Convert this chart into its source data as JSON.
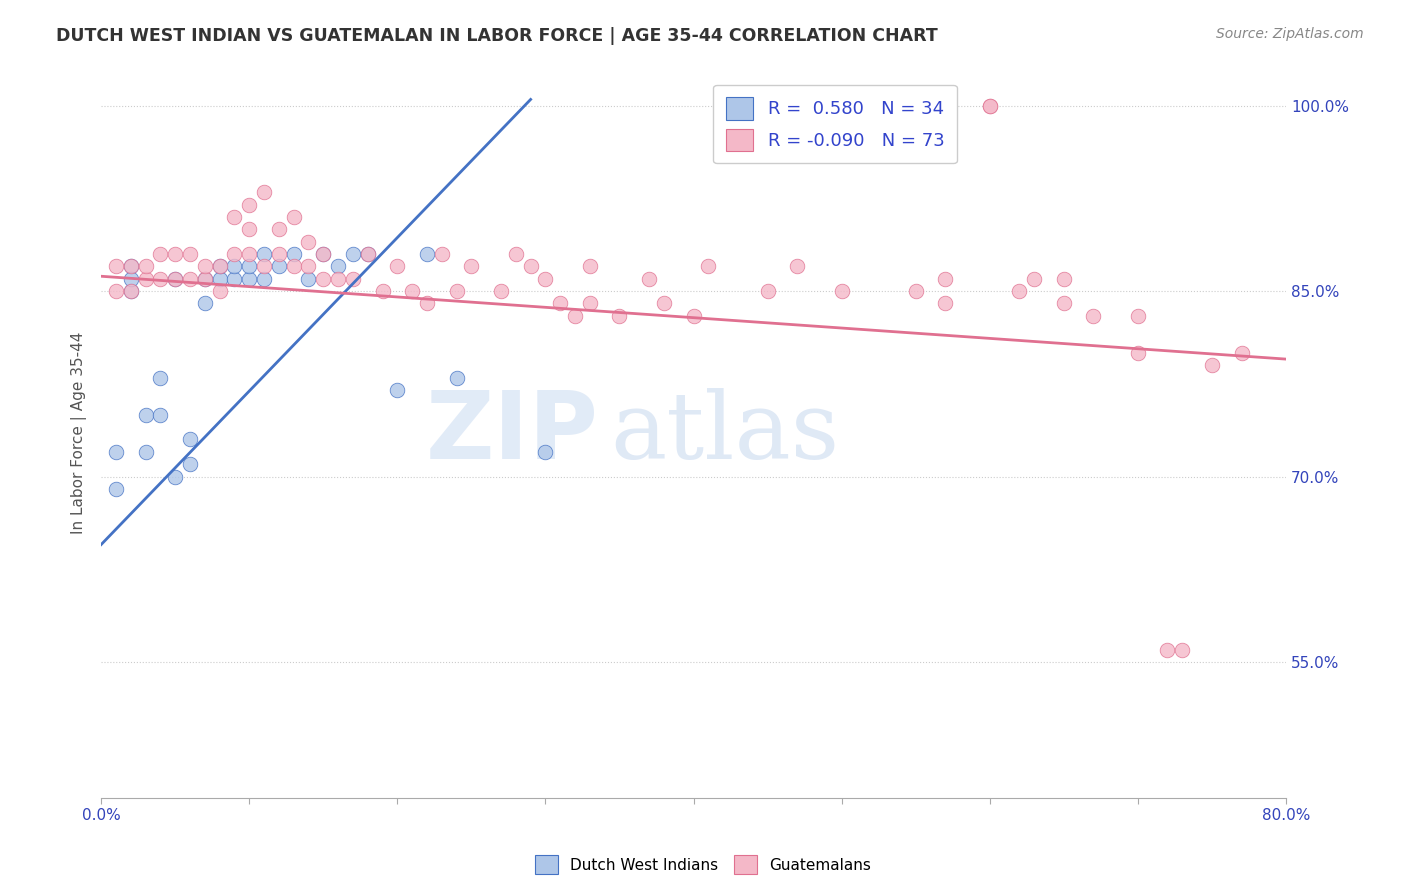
{
  "title": "DUTCH WEST INDIAN VS GUATEMALAN IN LABOR FORCE | AGE 35-44 CORRELATION CHART",
  "source": "Source: ZipAtlas.com",
  "ylabel": "In Labor Force | Age 35-44",
  "xlim": [
    0.0,
    0.8
  ],
  "ylim": [
    0.44,
    1.03
  ],
  "ytick_positions": [
    0.55,
    0.7,
    0.85,
    1.0
  ],
  "ytick_labels": [
    "55.0%",
    "70.0%",
    "85.0%",
    "100.0%"
  ],
  "blue_R": 0.58,
  "blue_N": 34,
  "pink_R": -0.09,
  "pink_N": 73,
  "blue_color": "#aec6e8",
  "blue_line_color": "#4472c4",
  "pink_color": "#f4b8c8",
  "pink_line_color": "#e07090",
  "blue_label": "Dutch West Indians",
  "pink_label": "Guatemalans",
  "watermark_zip": "ZIP",
  "watermark_atlas": "atlas",
  "background_color": "#ffffff",
  "blue_line_x0": 0.0,
  "blue_line_y0": 0.645,
  "blue_line_x1": 0.29,
  "blue_line_y1": 1.005,
  "pink_line_x0": 0.0,
  "pink_line_y0": 0.862,
  "pink_line_x1": 0.8,
  "pink_line_y1": 0.795,
  "blue_dots_x": [
    0.01,
    0.01,
    0.02,
    0.02,
    0.02,
    0.03,
    0.03,
    0.04,
    0.04,
    0.05,
    0.05,
    0.06,
    0.06,
    0.07,
    0.07,
    0.08,
    0.08,
    0.09,
    0.09,
    0.1,
    0.1,
    0.11,
    0.11,
    0.12,
    0.13,
    0.14,
    0.15,
    0.16,
    0.17,
    0.18,
    0.2,
    0.22,
    0.24,
    0.3
  ],
  "blue_dots_y": [
    0.69,
    0.72,
    0.85,
    0.87,
    0.86,
    0.72,
    0.75,
    0.75,
    0.78,
    0.7,
    0.86,
    0.71,
    0.73,
    0.84,
    0.86,
    0.86,
    0.87,
    0.86,
    0.87,
    0.86,
    0.87,
    0.86,
    0.88,
    0.87,
    0.88,
    0.86,
    0.88,
    0.87,
    0.88,
    0.88,
    0.77,
    0.88,
    0.78,
    0.72
  ],
  "pink_dots_x": [
    0.01,
    0.01,
    0.02,
    0.02,
    0.03,
    0.03,
    0.04,
    0.04,
    0.05,
    0.05,
    0.06,
    0.06,
    0.07,
    0.07,
    0.08,
    0.08,
    0.09,
    0.09,
    0.1,
    0.1,
    0.1,
    0.11,
    0.11,
    0.12,
    0.12,
    0.13,
    0.13,
    0.14,
    0.14,
    0.15,
    0.15,
    0.16,
    0.17,
    0.18,
    0.19,
    0.2,
    0.21,
    0.22,
    0.23,
    0.24,
    0.25,
    0.27,
    0.28,
    0.29,
    0.3,
    0.31,
    0.32,
    0.33,
    0.33,
    0.35,
    0.37,
    0.38,
    0.4,
    0.41,
    0.45,
    0.47,
    0.5,
    0.55,
    0.57,
    0.57,
    0.6,
    0.6,
    0.62,
    0.63,
    0.65,
    0.65,
    0.67,
    0.7,
    0.7,
    0.72,
    0.73,
    0.75,
    0.77
  ],
  "pink_dots_y": [
    0.85,
    0.87,
    0.85,
    0.87,
    0.86,
    0.87,
    0.86,
    0.88,
    0.86,
    0.88,
    0.86,
    0.88,
    0.86,
    0.87,
    0.85,
    0.87,
    0.88,
    0.91,
    0.88,
    0.9,
    0.92,
    0.87,
    0.93,
    0.88,
    0.9,
    0.87,
    0.91,
    0.87,
    0.89,
    0.86,
    0.88,
    0.86,
    0.86,
    0.88,
    0.85,
    0.87,
    0.85,
    0.84,
    0.88,
    0.85,
    0.87,
    0.85,
    0.88,
    0.87,
    0.86,
    0.84,
    0.83,
    0.87,
    0.84,
    0.83,
    0.86,
    0.84,
    0.83,
    0.87,
    0.85,
    0.87,
    0.85,
    0.85,
    0.86,
    0.84,
    1.0,
    1.0,
    0.85,
    0.86,
    0.86,
    0.84,
    0.83,
    0.8,
    0.83,
    0.56,
    0.56,
    0.79,
    0.8
  ]
}
